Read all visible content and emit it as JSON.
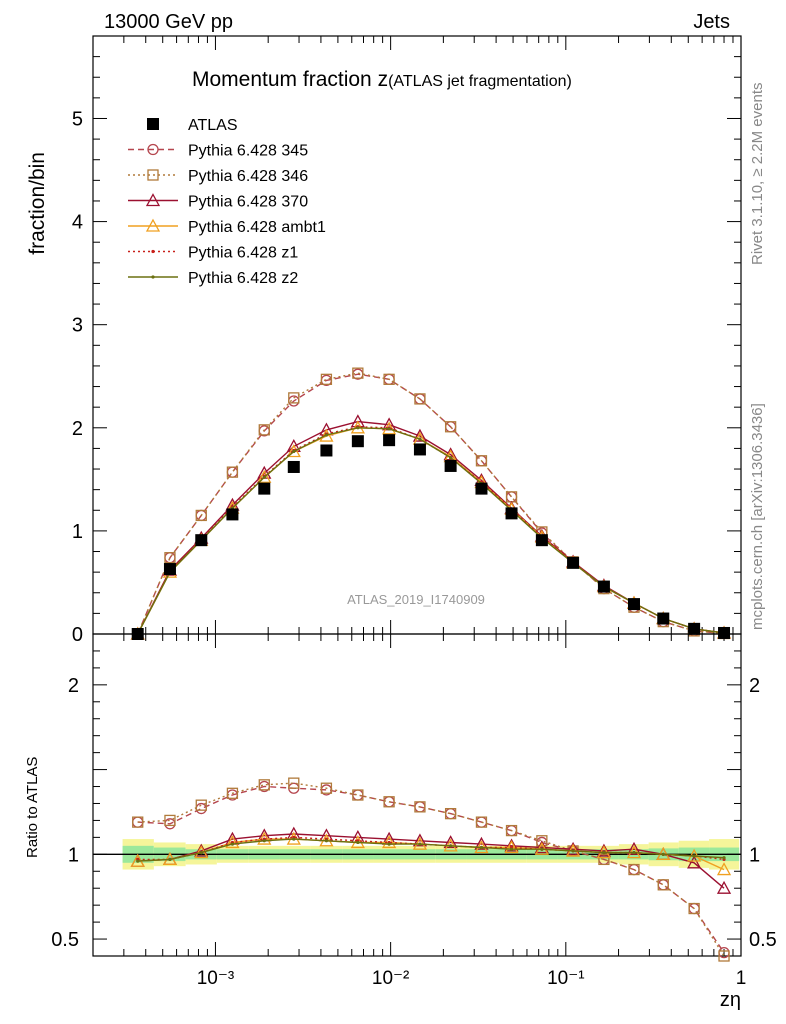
{
  "header": {
    "left": "13000 GeV pp",
    "right": "Jets",
    "side_top": "Rivet 3.1.10, ≥ 2.2M events",
    "side_bottom": "mcplots.cern.ch [arXiv:1306.3436]"
  },
  "chart_data": [
    {
      "type": "line",
      "panel": "main",
      "title": "Momentum fraction z",
      "title_sub": "(ATLAS jet fragmentation)",
      "ylabel": "fraction/bin",
      "analysis_label": "ATLAS_2019_I1740909",
      "x_log": true,
      "xlim": [
        0.0002,
        1
      ],
      "ylim": [
        0,
        5.8
      ],
      "y_ticks": [
        0,
        1,
        2,
        3,
        4,
        5
      ],
      "y_tick_labels": [
        "0",
        "1",
        "2",
        "3",
        "4",
        "5"
      ],
      "x": [
        0.00036,
        0.00055,
        0.00083,
        0.00125,
        0.0019,
        0.0028,
        0.0043,
        0.0065,
        0.0098,
        0.0147,
        0.022,
        0.033,
        0.049,
        0.073,
        0.11,
        0.165,
        0.245,
        0.36,
        0.54,
        0.8
      ],
      "series": [
        {
          "name": "ATLAS",
          "color": "#000000",
          "marker": "square",
          "values": [
            0.0,
            0.63,
            0.91,
            1.16,
            1.41,
            1.62,
            1.78,
            1.87,
            1.88,
            1.79,
            1.63,
            1.41,
            1.17,
            0.91,
            0.69,
            0.46,
            0.29,
            0.15,
            0.05,
            0.01
          ]
        },
        {
          "name": "Pythia 6.428 345",
          "color": "#b5464e",
          "marker": "circle",
          "dash": "6,4",
          "values": [
            0.0,
            0.74,
            1.15,
            1.57,
            1.97,
            2.26,
            2.46,
            2.52,
            2.47,
            2.28,
            2.01,
            1.68,
            1.33,
            0.98,
            0.7,
            0.44,
            0.26,
            0.12,
            0.03,
            0.005
          ]
        },
        {
          "name": "Pythia 6.428 346",
          "color": "#b07a3a",
          "marker": "square-open",
          "dash": "2,3",
          "values": [
            0.0,
            0.74,
            1.15,
            1.57,
            1.98,
            2.29,
            2.47,
            2.53,
            2.47,
            2.28,
            2.01,
            1.68,
            1.33,
            0.99,
            0.7,
            0.44,
            0.26,
            0.12,
            0.03,
            0.005
          ]
        },
        {
          "name": "Pythia 6.428 370",
          "color": "#9b1030",
          "marker": "triangle",
          "dash": "",
          "values": [
            0.0,
            0.62,
            0.93,
            1.25,
            1.56,
            1.82,
            1.98,
            2.06,
            2.03,
            1.92,
            1.74,
            1.49,
            1.22,
            0.95,
            0.7,
            0.47,
            0.3,
            0.15,
            0.05,
            0.01
          ]
        },
        {
          "name": "Pythia 6.428 ambt1",
          "color": "#f0a020",
          "marker": "triangle",
          "dash": "",
          "values": [
            0.0,
            0.6,
            0.91,
            1.22,
            1.52,
            1.77,
            1.92,
            2.0,
            1.99,
            1.89,
            1.72,
            1.47,
            1.21,
            0.94,
            0.69,
            0.46,
            0.3,
            0.15,
            0.05,
            0.01
          ]
        },
        {
          "name": "Pythia 6.428 z1",
          "color": "#c8201a",
          "marker": "dot",
          "dash": "2,3",
          "values": [
            0.0,
            0.61,
            0.92,
            1.23,
            1.53,
            1.78,
            1.94,
            2.01,
            2.0,
            1.89,
            1.71,
            1.47,
            1.21,
            0.94,
            0.7,
            0.46,
            0.3,
            0.15,
            0.05,
            0.01
          ]
        },
        {
          "name": "Pythia 6.428 z2",
          "color": "#6b7010",
          "marker": "dot",
          "dash": "",
          "values": [
            0.0,
            0.6,
            0.91,
            1.22,
            1.52,
            1.77,
            1.93,
            2.0,
            1.99,
            1.89,
            1.71,
            1.46,
            1.2,
            0.93,
            0.69,
            0.46,
            0.3,
            0.15,
            0.05,
            0.01
          ]
        }
      ]
    },
    {
      "type": "line",
      "panel": "ratio",
      "ylabel": "Ratio to ATLAS",
      "xlabel": "zη",
      "x_log": true,
      "xlim": [
        0.0002,
        1
      ],
      "ylim": [
        0.4,
        2.3
      ],
      "y_ticks": [
        0.5,
        1,
        2
      ],
      "y_tick_labels": [
        "0.5",
        "1",
        "2"
      ],
      "x_tick_labels": [
        "10⁻³",
        "10⁻²",
        "10⁻¹",
        "1"
      ],
      "x": [
        0.00036,
        0.00055,
        0.00083,
        0.00125,
        0.0019,
        0.0028,
        0.0043,
        0.0065,
        0.0098,
        0.0147,
        0.022,
        0.033,
        0.049,
        0.073,
        0.11,
        0.165,
        0.245,
        0.36,
        0.54,
        0.8
      ],
      "band_inner": [
        0.05,
        0.04,
        0.03,
        0.03,
        0.03,
        0.03,
        0.03,
        0.03,
        0.03,
        0.03,
        0.03,
        0.03,
        0.03,
        0.03,
        0.03,
        0.03,
        0.03,
        0.035,
        0.04,
        0.04
      ],
      "band_outer": [
        0.09,
        0.07,
        0.06,
        0.05,
        0.05,
        0.05,
        0.05,
        0.05,
        0.05,
        0.05,
        0.05,
        0.05,
        0.05,
        0.05,
        0.05,
        0.05,
        0.06,
        0.07,
        0.08,
        0.09
      ],
      "series": [
        {
          "name": "Pythia 6.428 345",
          "color": "#b5464e",
          "marker": "circle",
          "dash": "6,4",
          "values": [
            1.19,
            1.18,
            1.27,
            1.35,
            1.4,
            1.39,
            1.38,
            1.35,
            1.31,
            1.28,
            1.24,
            1.19,
            1.14,
            1.07,
            1.02,
            0.97,
            0.91,
            0.82,
            0.68,
            0.42
          ]
        },
        {
          "name": "Pythia 6.428 346",
          "color": "#b07a3a",
          "marker": "square-open",
          "dash": "2,3",
          "values": [
            1.19,
            1.2,
            1.29,
            1.36,
            1.41,
            1.42,
            1.39,
            1.35,
            1.31,
            1.28,
            1.24,
            1.19,
            1.14,
            1.08,
            1.02,
            0.97,
            0.91,
            0.82,
            0.68,
            0.39
          ]
        },
        {
          "name": "Pythia 6.428 370",
          "color": "#9b1030",
          "marker": "triangle",
          "dash": "",
          "values": [
            0.96,
            0.97,
            1.02,
            1.09,
            1.11,
            1.12,
            1.11,
            1.1,
            1.09,
            1.08,
            1.07,
            1.06,
            1.05,
            1.04,
            1.03,
            1.02,
            1.03,
            1.0,
            0.95,
            0.8
          ]
        },
        {
          "name": "Pythia 6.428 ambt1",
          "color": "#f0a020",
          "marker": "triangle",
          "dash": "",
          "values": [
            0.96,
            0.97,
            1.01,
            1.07,
            1.09,
            1.09,
            1.08,
            1.07,
            1.07,
            1.06,
            1.05,
            1.04,
            1.04,
            1.03,
            1.02,
            1.01,
            1.01,
            1.0,
            0.99,
            0.91
          ]
        },
        {
          "name": "Pythia 6.428 z1",
          "color": "#c8201a",
          "marker": "dot",
          "dash": "2,3",
          "values": [
            0.97,
            0.97,
            1.01,
            1.07,
            1.09,
            1.1,
            1.09,
            1.08,
            1.07,
            1.06,
            1.05,
            1.04,
            1.04,
            1.03,
            1.02,
            1.01,
            1.01,
            1.0,
            0.99,
            0.97
          ]
        },
        {
          "name": "Pythia 6.428 z2",
          "color": "#6b7010",
          "marker": "dot",
          "dash": "",
          "values": [
            0.96,
            0.97,
            1.01,
            1.06,
            1.08,
            1.09,
            1.08,
            1.07,
            1.06,
            1.06,
            1.05,
            1.04,
            1.03,
            1.03,
            1.02,
            1.01,
            1.01,
            1.0,
            0.99,
            0.98
          ]
        }
      ]
    }
  ]
}
